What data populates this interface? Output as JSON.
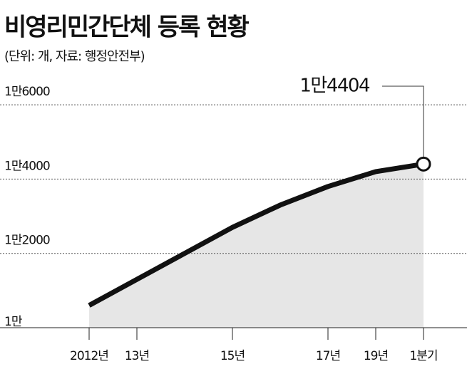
{
  "chart_data": {
    "type": "area",
    "title": "비영리민간단체 등록 현황",
    "subtitle": "(단위: 개, 자료: 행정안전부)",
    "categories": [
      "2012년",
      "13년",
      null,
      "15년",
      null,
      "17년",
      "19년",
      "1분기"
    ],
    "series": [
      {
        "color": "#111111",
        "fill": "#e6e6e6",
        "values": [
          10600,
          11300,
          12000,
          12700,
          13300,
          13800,
          14200,
          14404
        ],
        "value_labels": [
          null,
          null,
          null,
          null,
          null,
          null,
          null,
          "1만4404"
        ]
      }
    ],
    "ylim": [
      10000,
      16500
    ],
    "yticks": [
      {
        "value": 10000,
        "label": "1만"
      },
      {
        "value": 12000,
        "label": "1만2000"
      },
      {
        "value": 14000,
        "label": "1만4000"
      },
      {
        "value": 16000,
        "label": "1만6000"
      }
    ],
    "grid": true
  }
}
